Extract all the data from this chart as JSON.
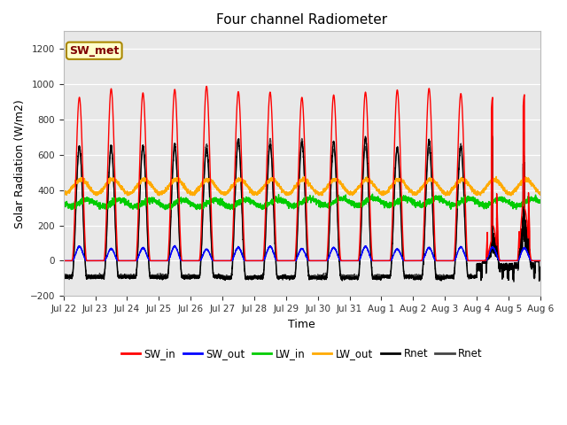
{
  "title": "Four channel Radiometer",
  "xlabel": "Time",
  "ylabel": "Solar Radiation (W/m2)",
  "ylim": [
    -200,
    1300
  ],
  "yticks": [
    -200,
    0,
    200,
    400,
    600,
    800,
    1000,
    1200
  ],
  "plot_bg_color": "#e8e8e8",
  "annotation_text": "SW_met",
  "legend_entries": [
    {
      "label": "SW_in",
      "color": "#ff0000"
    },
    {
      "label": "SW_out",
      "color": "#0000ff"
    },
    {
      "label": "LW_in",
      "color": "#00cc00"
    },
    {
      "label": "LW_out",
      "color": "#ffaa00"
    },
    {
      "label": "Rnet",
      "color": "#000000"
    },
    {
      "label": "Rnet",
      "color": "#444444"
    }
  ],
  "num_days": 15,
  "tick_labels": [
    "Jul 22",
    "Jul 23",
    "Jul 24",
    "Jul 25",
    "Jul 26",
    "Jul 27",
    "Jul 28",
    "Jul 29",
    "Jul 30",
    "Jul 31",
    "Aug 1",
    "Aug 2",
    "Aug 3",
    "Aug 4",
    "Aug 5",
    "Aug 6"
  ]
}
